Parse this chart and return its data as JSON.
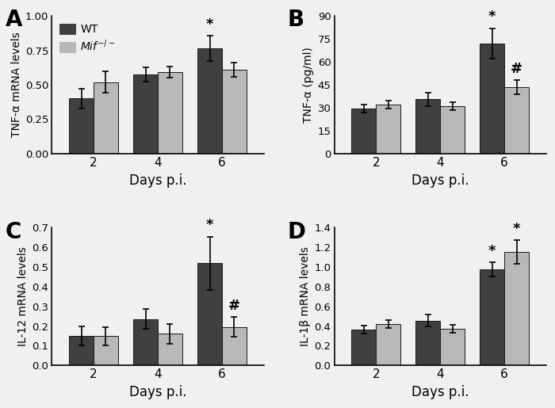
{
  "panels": [
    {
      "label": "A",
      "ylabel": "TNF-α mRNA levels",
      "days": [
        2,
        4,
        6
      ],
      "wt_means": [
        0.4,
        0.575,
        0.765
      ],
      "wt_errs": [
        0.07,
        0.05,
        0.09
      ],
      "mif_means": [
        0.52,
        0.59,
        0.61
      ],
      "mif_errs": [
        0.08,
        0.04,
        0.05
      ],
      "ylim": [
        0,
        1.0
      ],
      "yticks": [
        0.0,
        0.25,
        0.5,
        0.75,
        1.0
      ],
      "star_wt_day6": true,
      "hash_mif_day6": false,
      "star_mif_day6": false,
      "has_legend": true
    },
    {
      "label": "B",
      "ylabel": "TNF-α (pg/ml)",
      "days": [
        2,
        4,
        6
      ],
      "wt_means": [
        29.5,
        35.5,
        72.0
      ],
      "wt_errs": [
        2.5,
        4.5,
        10.0
      ],
      "mif_means": [
        32.0,
        31.0,
        43.5
      ],
      "mif_errs": [
        2.5,
        2.5,
        4.5
      ],
      "ylim": [
        0,
        90
      ],
      "yticks": [
        0,
        15,
        30,
        45,
        60,
        75,
        90
      ],
      "star_wt_day6": true,
      "hash_mif_day6": true,
      "star_mif_day6": false,
      "has_legend": false
    },
    {
      "label": "C",
      "ylabel": "IL-12 mRNA levels",
      "days": [
        2,
        4,
        6
      ],
      "wt_means": [
        0.15,
        0.235,
        0.52
      ],
      "wt_errs": [
        0.05,
        0.05,
        0.135
      ],
      "mif_means": [
        0.148,
        0.16,
        0.195
      ],
      "mif_errs": [
        0.048,
        0.05,
        0.05
      ],
      "ylim": [
        0,
        0.7
      ],
      "yticks": [
        0.0,
        0.1,
        0.2,
        0.3,
        0.4,
        0.5,
        0.6,
        0.7
      ],
      "star_wt_day6": true,
      "hash_mif_day6": true,
      "star_mif_day6": false,
      "has_legend": false
    },
    {
      "label": "D",
      "ylabel": "IL-1β mRNA levels",
      "days": [
        2,
        4,
        6
      ],
      "wt_means": [
        0.365,
        0.455,
        0.975
      ],
      "wt_errs": [
        0.04,
        0.06,
        0.075
      ],
      "mif_means": [
        0.42,
        0.375,
        1.15
      ],
      "mif_errs": [
        0.04,
        0.04,
        0.12
      ],
      "ylim": [
        0.0,
        1.4
      ],
      "yticks": [
        0.0,
        0.2,
        0.4,
        0.6,
        0.8,
        1.0,
        1.2,
        1.4
      ],
      "star_wt_day6": true,
      "hash_mif_day6": false,
      "star_mif_day6": true,
      "has_legend": false
    }
  ],
  "wt_color": "#404040",
  "mif_color": "#b8b8b8",
  "bar_width": 0.38,
  "xlabel": "Days p.i.",
  "capsize": 3,
  "error_linewidth": 1.2,
  "bar_edge_color": "#1a1a1a",
  "background_color": "#f0f0f0"
}
